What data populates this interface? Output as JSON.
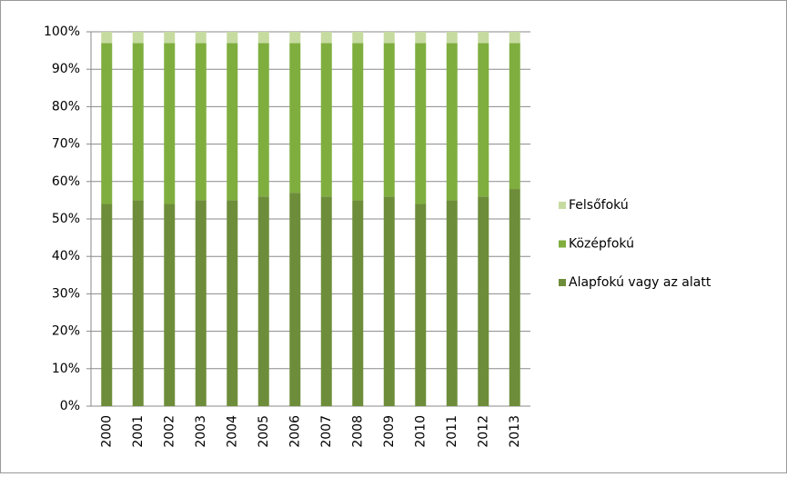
{
  "chart_data": {
    "type": "bar",
    "stacked": true,
    "categories": [
      "2000",
      "2001",
      "2002",
      "2003",
      "2004",
      "2005",
      "2006",
      "2007",
      "2008",
      "2009",
      "2010",
      "2011",
      "2012",
      "2013"
    ],
    "series": [
      {
        "name": "Alapfokú vagy az alatt",
        "color": "#6e8d3a",
        "values": [
          54,
          55,
          54,
          55,
          55,
          56,
          57,
          56,
          55,
          56,
          54,
          55,
          56,
          58
        ]
      },
      {
        "name": "Középfokú",
        "color": "#7fae3f",
        "values": [
          43,
          42,
          43,
          42,
          42,
          41,
          40,
          41,
          42,
          41,
          43,
          42,
          41,
          39
        ]
      },
      {
        "name": "Felsőfokú",
        "color": "#c6dba0",
        "values": [
          3,
          3,
          3,
          3,
          3,
          3,
          3,
          3,
          3,
          3,
          3,
          3,
          3,
          3
        ]
      }
    ],
    "ylim": [
      0,
      100
    ],
    "yticks": [
      {
        "value": 0,
        "label": "0%"
      },
      {
        "value": 10,
        "label": "10%"
      },
      {
        "value": 20,
        "label": "20%"
      },
      {
        "value": 30,
        "label": "30%"
      },
      {
        "value": 40,
        "label": "40%"
      },
      {
        "value": 50,
        "label": "50%"
      },
      {
        "value": 60,
        "label": "60%"
      },
      {
        "value": 70,
        "label": "70%"
      },
      {
        "value": 80,
        "label": "80%"
      },
      {
        "value": 90,
        "label": "90%"
      },
      {
        "value": 100,
        "label": "100%"
      }
    ],
    "grid": true,
    "legend": "right"
  }
}
